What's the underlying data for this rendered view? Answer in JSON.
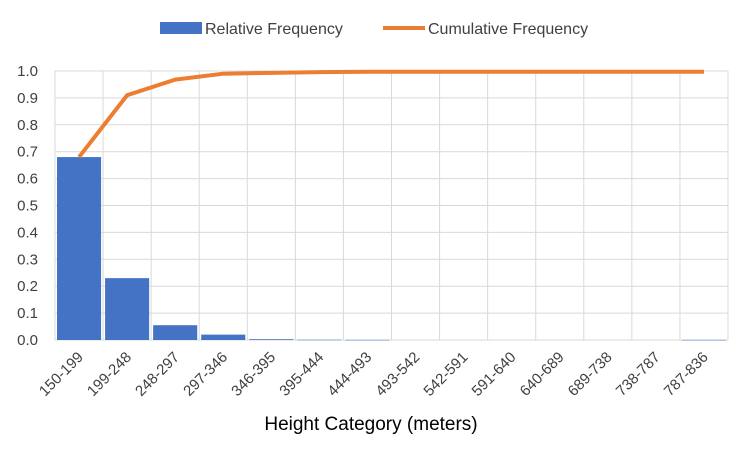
{
  "chart_data": {
    "type": "bar",
    "title": "",
    "xlabel": "Height Category (meters)",
    "ylabel": "",
    "categories": [
      "150-199",
      "199-248",
      "248-297",
      "297-346",
      "346-395",
      "395-444",
      "444-493",
      "493-542",
      "542-591",
      "591-640",
      "640-689",
      "689-738",
      "738-787",
      "787-836"
    ],
    "series": [
      {
        "name": "Relative Frequency",
        "type": "bar",
        "color": "#4472C4",
        "values": [
          0.68,
          0.23,
          0.055,
          0.02,
          0.003,
          0.001,
          0.0005,
          0,
          0,
          0,
          0,
          0,
          0,
          0.0005
        ]
      },
      {
        "name": "Cumulative Frequency",
        "type": "line",
        "color": "#ED7D31",
        "values": [
          0.68,
          0.91,
          0.968,
          0.99,
          0.993,
          0.996,
          0.997,
          0.997,
          0.997,
          0.997,
          0.997,
          0.997,
          0.997,
          0.997
        ]
      }
    ],
    "ylim": [
      0,
      1.0
    ],
    "yticks": [
      "0.0",
      "0.1",
      "0.2",
      "0.3",
      "0.4",
      "0.5",
      "0.6",
      "0.7",
      "0.8",
      "0.9",
      "1.0"
    ],
    "grid": true,
    "legend": "top-center"
  }
}
